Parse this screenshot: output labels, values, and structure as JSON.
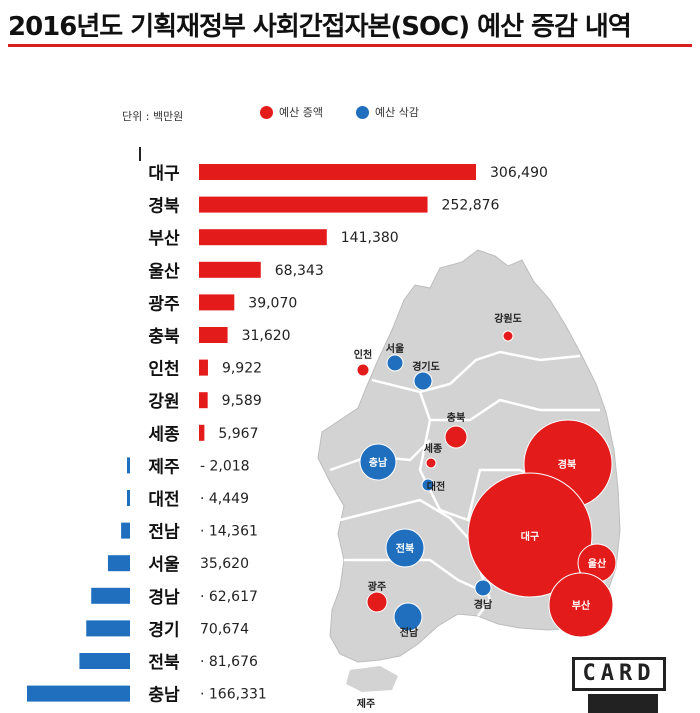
{
  "title": "2016년도 기획재정부 사회간접자본(SOC) 예산 증감 내역",
  "unit_label": "단위 : 백만원",
  "legend": {
    "increase_label": "예산 증액",
    "decrease_label": "예산 삭감"
  },
  "colors": {
    "increase": "#e41b1b",
    "decrease": "#1f6fbe",
    "map_land": "#d3d3d3",
    "map_border": "#ffffff"
  },
  "chart_data": {
    "type": "bar",
    "orientation": "horizontal",
    "categories": [
      "대구",
      "경북",
      "부산",
      "울산",
      "광주",
      "충북",
      "인천",
      "강원",
      "세종",
      "제주",
      "대전",
      "전남",
      "서울",
      "경남",
      "경기",
      "전북",
      "충남"
    ],
    "values": [
      306490,
      252876,
      141380,
      68343,
      39070,
      31620,
      9922,
      9589,
      5967,
      -2018,
      -4449,
      -14361,
      -35620,
      -62617,
      -70674,
      -81676,
      -166331
    ],
    "value_labels": [
      "306,490",
      "252,876",
      "141,380",
      "68,343",
      "39,070",
      "31,620",
      "9,922",
      "9,589",
      "5,967",
      "- 2,018",
      "· 4,449",
      "· 14,361",
      "35,620",
      "· 62,617",
      "70,674",
      "· 81,676",
      "· 166,331"
    ],
    "xlabel": "",
    "ylabel": ""
  },
  "map": {
    "region_labels": [
      "강원도",
      "서울",
      "인천",
      "경기도",
      "충북",
      "충남",
      "세종",
      "대전",
      "경북",
      "대구",
      "울산",
      "부산",
      "전북",
      "광주",
      "전남",
      "경남",
      "제주"
    ]
  },
  "logo_text": "CARD"
}
